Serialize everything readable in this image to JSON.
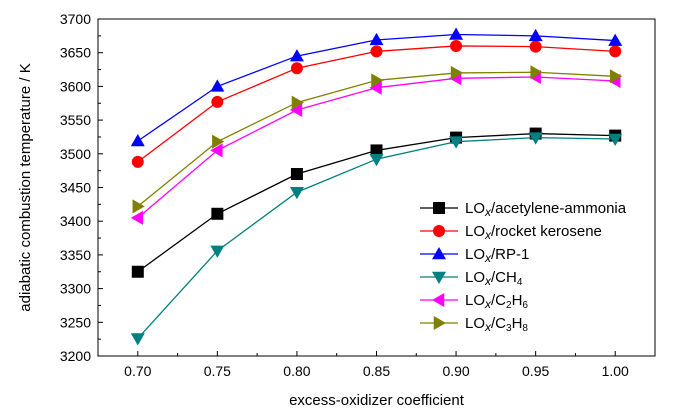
{
  "chart_data": {
    "type": "line",
    "xlabel": "excess-oxidizer coefficient",
    "ylabel": "adiabatic combustion temperature / K",
    "xlim": [
      0.675,
      1.025
    ],
    "ylim": [
      3200,
      3700
    ],
    "xticks": [
      0.7,
      0.75,
      0.8,
      0.85,
      0.9,
      0.95,
      1.0
    ],
    "xtick_labels": [
      "0.70",
      "0.75",
      "0.80",
      "0.85",
      "0.90",
      "0.95",
      "1.00"
    ],
    "yticks": [
      3200,
      3250,
      3300,
      3350,
      3400,
      3450,
      3500,
      3550,
      3600,
      3650,
      3700
    ],
    "ytick_labels": [
      "3200",
      "3250",
      "3300",
      "3350",
      "3400",
      "3450",
      "3500",
      "3550",
      "3600",
      "3650",
      "3700"
    ],
    "x": [
      0.7,
      0.75,
      0.8,
      0.85,
      0.9,
      0.95,
      1.0
    ],
    "grid": false,
    "legend_position": "lower-right",
    "series": [
      {
        "name_prefix": "LO",
        "name_sub": "x",
        "name_rest": "/acetylene-ammonia",
        "color": "#000000",
        "marker": "square",
        "values": [
          3325,
          3411,
          3470,
          3505,
          3524,
          3530,
          3527
        ]
      },
      {
        "name_prefix": "LO",
        "name_sub": "x",
        "name_rest": "/rocket kerosene",
        "color": "#ff0000",
        "marker": "circle",
        "values": [
          3488,
          3577,
          3627,
          3652,
          3660,
          3659,
          3652
        ]
      },
      {
        "name_prefix": "LO",
        "name_sub": "x",
        "name_rest": "/RP-1",
        "color": "#0000ff",
        "marker": "triangle-up",
        "values": [
          3519,
          3600,
          3645,
          3669,
          3677,
          3675,
          3668
        ]
      },
      {
        "name_prefix": "LO",
        "name_sub": "x",
        "name_rest": "/CH",
        "name_sub2": "4",
        "color": "#008080",
        "marker": "triangle-down",
        "values": [
          3226,
          3356,
          3443,
          3492,
          3518,
          3524,
          3522
        ]
      },
      {
        "name_prefix": "LO",
        "name_sub": "x",
        "name_rest": "/C",
        "name_sub2": "2",
        "name_rest2": "H",
        "name_sub3": "6",
        "color": "#ff00ff",
        "marker": "triangle-left",
        "values": [
          3405,
          3505,
          3565,
          3598,
          3612,
          3614,
          3608
        ]
      },
      {
        "name_prefix": "LO",
        "name_sub": "x",
        "name_rest": "/C",
        "name_sub2": "3",
        "name_rest2": "H",
        "name_sub3": "8",
        "color": "#808000",
        "marker": "triangle-right",
        "values": [
          3422,
          3518,
          3576,
          3609,
          3620,
          3621,
          3615
        ]
      }
    ]
  }
}
